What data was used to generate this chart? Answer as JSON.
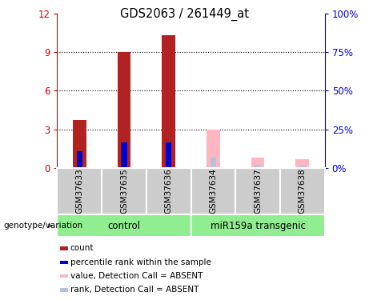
{
  "title": "GDS2063 / 261449_at",
  "samples": [
    "GSM37633",
    "GSM37635",
    "GSM37636",
    "GSM37634",
    "GSM37637",
    "GSM37638"
  ],
  "count_values": [
    3.7,
    9.0,
    10.3,
    0.0,
    0.0,
    0.0
  ],
  "rank_values": [
    1.3,
    2.0,
    2.0,
    0.0,
    0.0,
    0.0
  ],
  "absent_value_values": [
    0.0,
    0.0,
    0.0,
    3.0,
    0.8,
    0.7
  ],
  "absent_rank_values": [
    0.0,
    0.0,
    0.0,
    0.8,
    0.25,
    0.2
  ],
  "ylim_left": [
    0,
    12
  ],
  "ylim_right": [
    0,
    100
  ],
  "yticks_left": [
    0,
    3,
    6,
    9,
    12
  ],
  "yticks_right": [
    0,
    25,
    50,
    75,
    100
  ],
  "ytick_labels_left": [
    "0",
    "3",
    "6",
    "9",
    "12"
  ],
  "ytick_labels_right": [
    "0%",
    "25%",
    "50%",
    "75%",
    "100%"
  ],
  "bar_width": 0.3,
  "color_count": "#b22222",
  "color_rank": "#0000cd",
  "color_absent_value": "#ffb6c1",
  "color_absent_rank": "#b0c4de",
  "color_sample_bg": "#cccccc",
  "color_group_bg": "#90EE90",
  "ylabel_left_color": "#cc0000",
  "ylabel_right_color": "#0000cc",
  "control_label": "control",
  "transgenic_label": "miR159a transgenic",
  "genotype_label": "genotype/variation",
  "legend_items": [
    [
      "#b22222",
      "count"
    ],
    [
      "#0000cd",
      "percentile rank within the sample"
    ],
    [
      "#ffb6c1",
      "value, Detection Call = ABSENT"
    ],
    [
      "#b0c4de",
      "rank, Detection Call = ABSENT"
    ]
  ]
}
